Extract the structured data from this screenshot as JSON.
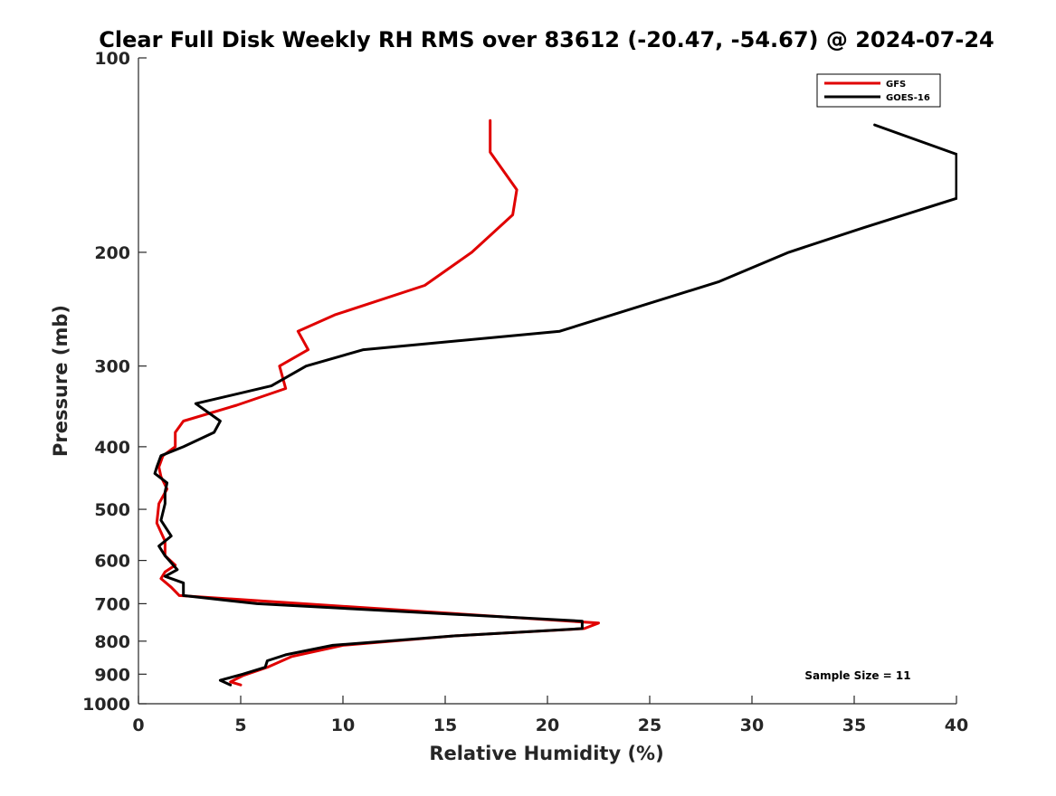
{
  "chart_data": {
    "type": "line",
    "title": "Clear Full Disk Weekly RH RMS over 83612 (-20.47, -54.67) @ 2024-07-24",
    "xlabel": "Relative Humidity (%)",
    "ylabel": "Pressure (mb)",
    "xlim": [
      0,
      40
    ],
    "ylim": [
      1000,
      100
    ],
    "yscale": "log",
    "xticks": [
      0,
      5,
      10,
      15,
      20,
      25,
      30,
      35,
      40
    ],
    "yticks": [
      100,
      200,
      300,
      400,
      500,
      600,
      700,
      800,
      900,
      1000
    ],
    "grid": false,
    "legend_position": "top-right",
    "annotation": "Sample Size = 11",
    "series": [
      {
        "name": "GFS",
        "color": "#e00000",
        "points": [
          [
            17.2,
            125
          ],
          [
            17.2,
            140
          ],
          [
            18.5,
            160
          ],
          [
            18.3,
            175
          ],
          [
            16.3,
            200
          ],
          [
            14.0,
            225
          ],
          [
            9.6,
            250
          ],
          [
            7.8,
            265
          ],
          [
            8.3,
            283
          ],
          [
            6.9,
            300
          ],
          [
            7.2,
            325
          ],
          [
            4.8,
            345
          ],
          [
            2.2,
            365
          ],
          [
            1.8,
            380
          ],
          [
            1.8,
            400
          ],
          [
            1.2,
            413
          ],
          [
            1.0,
            430
          ],
          [
            1.1,
            445
          ],
          [
            1.4,
            465
          ],
          [
            1.0,
            490
          ],
          [
            0.9,
            525
          ],
          [
            1.3,
            560
          ],
          [
            1.3,
            590
          ],
          [
            1.8,
            610
          ],
          [
            1.3,
            625
          ],
          [
            1.1,
            640
          ],
          [
            1.6,
            660
          ],
          [
            2.0,
            680
          ],
          [
            22.5,
            750
          ],
          [
            21.8,
            765
          ],
          [
            15.5,
            785
          ],
          [
            10.0,
            812
          ],
          [
            7.5,
            845
          ],
          [
            6.3,
            878
          ],
          [
            5.1,
            905
          ],
          [
            4.5,
            925
          ],
          [
            5.0,
            935
          ]
        ]
      },
      {
        "name": "GOES-16",
        "color": "#000000",
        "points": [
          [
            36.0,
            127
          ],
          [
            40.0,
            141
          ],
          [
            40.0,
            165
          ],
          [
            35.5,
            183
          ],
          [
            31.8,
            200
          ],
          [
            28.4,
            222
          ],
          [
            20.6,
            265
          ],
          [
            11.0,
            283
          ],
          [
            8.2,
            300
          ],
          [
            6.5,
            322
          ],
          [
            2.8,
            343
          ],
          [
            4.0,
            365
          ],
          [
            3.7,
            380
          ],
          [
            2.2,
            400
          ],
          [
            1.1,
            413
          ],
          [
            0.9,
            430
          ],
          [
            0.8,
            440
          ],
          [
            1.4,
            455
          ],
          [
            1.3,
            470
          ],
          [
            1.3,
            490
          ],
          [
            1.1,
            520
          ],
          [
            1.6,
            550
          ],
          [
            1.0,
            570
          ],
          [
            1.3,
            590
          ],
          [
            1.9,
            620
          ],
          [
            1.3,
            635
          ],
          [
            2.2,
            650
          ],
          [
            2.2,
            680
          ],
          [
            5.8,
            700
          ],
          [
            21.7,
            745
          ],
          [
            21.7,
            765
          ],
          [
            15.5,
            785
          ],
          [
            9.5,
            812
          ],
          [
            7.2,
            840
          ],
          [
            6.3,
            858
          ],
          [
            6.2,
            878
          ],
          [
            5.1,
            900
          ],
          [
            4.0,
            920
          ],
          [
            4.5,
            935
          ]
        ]
      }
    ]
  }
}
